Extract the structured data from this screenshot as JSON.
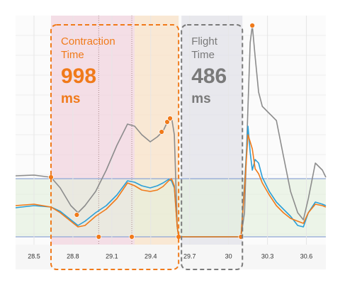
{
  "chart_data": {
    "type": "line",
    "x": [
      28.358,
      28.5,
      28.631,
      28.702,
      28.784,
      28.839,
      28.893,
      28.975,
      29.057,
      29.139,
      29.221,
      29.276,
      29.331,
      29.396,
      29.451,
      29.495,
      29.538,
      29.56,
      29.582,
      29.604,
      29.615,
      30.096,
      30.123,
      30.15,
      30.167,
      30.183,
      30.205,
      30.232,
      30.26,
      30.314,
      30.369,
      30.423,
      30.478,
      30.533,
      30.577,
      30.615,
      30.669,
      30.724,
      30.75
    ],
    "series": [
      {
        "color": "#8c8c8c",
        "values": [
          86,
          87,
          84,
          69,
          44,
          34,
          44,
          64,
          94,
          129,
          159,
          156,
          144,
          134,
          141,
          149,
          166,
          169,
          144,
          14,
          0,
          0,
          34,
          184,
          274,
          298,
          254,
          204,
          184,
          174,
          164,
          114,
          64,
          34,
          24,
          54,
          104,
          94,
          84
        ]
      },
      {
        "color": "#2a9fd8",
        "values": [
          41,
          44,
          42,
          36,
          24,
          16,
          22,
          34,
          44,
          59,
          79,
          77,
          72,
          69,
          72,
          76,
          81,
          79,
          69,
          14,
          0,
          0,
          74,
          156,
          119,
          94,
          109,
          104,
          84,
          64,
          49,
          39,
          29,
          16,
          14,
          34,
          49,
          46,
          44
        ]
      },
      {
        "color": "#f07a1a",
        "values": [
          44,
          46,
          42,
          34,
          22,
          14,
          16,
          29,
          39,
          54,
          76,
          72,
          66,
          64,
          66,
          71,
          79,
          82,
          72,
          14,
          0,
          0,
          69,
          144,
          134,
          124,
          96,
          89,
          76,
          59,
          44,
          34,
          26,
          22,
          19,
          34,
          46,
          44,
          42
        ]
      }
    ],
    "markers": {
      "color": "#f07a1a",
      "x": [
        28.631,
        28.83,
        28.999,
        29.254,
        29.615,
        30.096,
        30.183,
        29.484,
        29.527,
        29.549
      ],
      "y": [
        84,
        31,
        0,
        0,
        0,
        0,
        298,
        148,
        162,
        167
      ]
    },
    "band": {
      "y": [
        0,
        82
      ],
      "color": "#e3f0dc",
      "line_color": "#8fa6d6"
    },
    "phase_fills": [
      {
        "x": [
          28.631,
          29.276
        ],
        "color": "#f2d8e2"
      },
      {
        "x": [
          29.276,
          29.615
        ],
        "color": "#f8e4cc"
      },
      {
        "x": [
          29.637,
          30.107
        ],
        "color": "#e4e4ea"
      }
    ],
    "phase_lines": [
      28.999,
      29.254
    ],
    "regions": [
      {
        "title_lines": [
          "Contraction",
          "Time"
        ],
        "value": 998,
        "unit": "ms",
        "x": [
          28.631,
          29.615
        ],
        "color": "#f07a1a"
      },
      {
        "title_lines": [
          "Flight",
          "Time"
        ],
        "value": 486,
        "unit": "ms",
        "x": [
          29.637,
          30.107
        ],
        "color": "#7a7a7a"
      }
    ],
    "xlim": [
      28.358,
      30.75
    ],
    "ylim": [
      -11,
      312
    ],
    "xticks": [
      28.5,
      28.8,
      29.1,
      29.4,
      29.7,
      30,
      30.3,
      30.6
    ],
    "grid": true
  }
}
